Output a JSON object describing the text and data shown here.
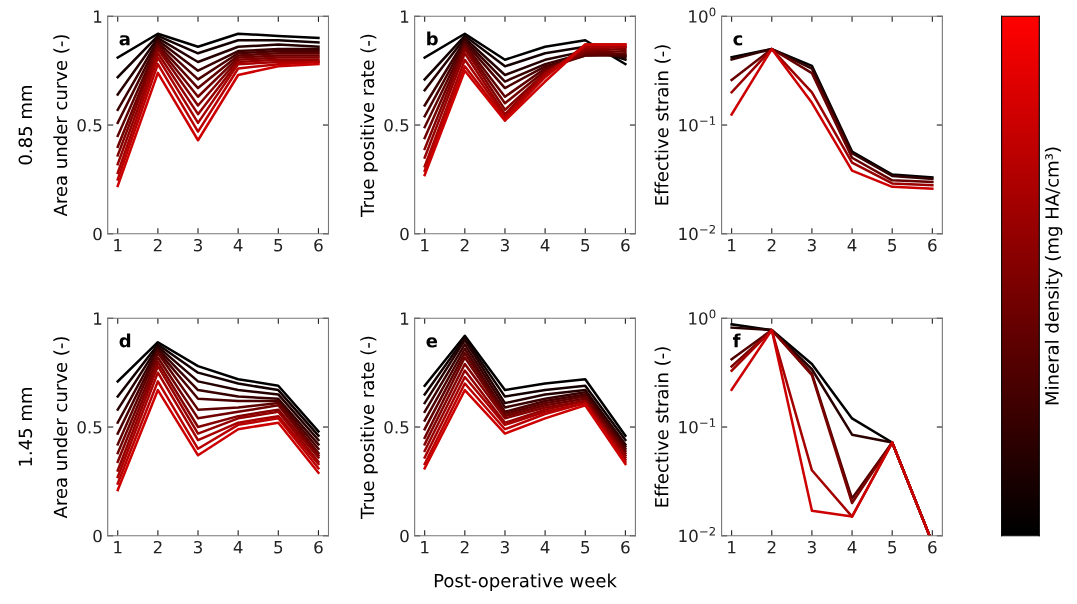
{
  "chart_data": [
    {
      "type": "line",
      "ylabel": "Area under curve (-)",
      "annotations": [
        "a",
        "0.85 mm"
      ],
      "x": [
        1,
        2,
        3,
        4,
        5,
        6
      ],
      "xlim": [
        0.75,
        6.25
      ],
      "xticks": [
        1,
        2,
        3,
        4,
        5,
        6
      ],
      "ylim": [
        0,
        1
      ],
      "yticks": [
        0,
        0.5,
        1
      ],
      "series": [
        {
          "color": "#000000",
          "values": [
            0.81,
            0.92,
            0.86,
            0.92,
            0.91,
            0.9
          ]
        },
        {
          "color": "#130000",
          "values": [
            0.72,
            0.91,
            0.83,
            0.89,
            0.89,
            0.88
          ]
        },
        {
          "color": "#250000",
          "values": [
            0.64,
            0.9,
            0.79,
            0.86,
            0.87,
            0.86
          ]
        },
        {
          "color": "#380000",
          "values": [
            0.57,
            0.89,
            0.75,
            0.84,
            0.85,
            0.85
          ]
        },
        {
          "color": "#4a0000",
          "values": [
            0.51,
            0.88,
            0.71,
            0.83,
            0.84,
            0.84
          ]
        },
        {
          "color": "#5d0000",
          "values": [
            0.45,
            0.87,
            0.67,
            0.82,
            0.83,
            0.83
          ]
        },
        {
          "color": "#6f0000",
          "values": [
            0.4,
            0.86,
            0.63,
            0.81,
            0.82,
            0.82
          ]
        },
        {
          "color": "#820000",
          "values": [
            0.36,
            0.85,
            0.59,
            0.8,
            0.81,
            0.81
          ]
        },
        {
          "color": "#940000",
          "values": [
            0.32,
            0.83,
            0.55,
            0.79,
            0.8,
            0.8
          ]
        },
        {
          "color": "#a70000",
          "values": [
            0.28,
            0.81,
            0.51,
            0.78,
            0.79,
            0.79
          ]
        },
        {
          "color": "#b90000",
          "values": [
            0.25,
            0.78,
            0.47,
            0.76,
            0.78,
            0.79
          ]
        },
        {
          "color": "#cc0000",
          "values": [
            0.22,
            0.74,
            0.43,
            0.73,
            0.77,
            0.78
          ]
        }
      ]
    },
    {
      "type": "line",
      "ylabel": "True positive rate (-)",
      "annotations": [
        "b"
      ],
      "x": [
        1,
        2,
        3,
        4,
        5,
        6
      ],
      "xlim": [
        0.75,
        6.25
      ],
      "xticks": [
        1,
        2,
        3,
        4,
        5,
        6
      ],
      "ylim": [
        0,
        1
      ],
      "yticks": [
        0,
        0.5,
        1
      ],
      "series": [
        {
          "color": "#000000",
          "values": [
            0.81,
            0.92,
            0.8,
            0.86,
            0.89,
            0.78
          ]
        },
        {
          "color": "#130000",
          "values": [
            0.71,
            0.91,
            0.77,
            0.83,
            0.86,
            0.8
          ]
        },
        {
          "color": "#250000",
          "values": [
            0.66,
            0.9,
            0.73,
            0.8,
            0.84,
            0.81
          ]
        },
        {
          "color": "#380000",
          "values": [
            0.59,
            0.89,
            0.7,
            0.78,
            0.83,
            0.82
          ]
        },
        {
          "color": "#4a0000",
          "values": [
            0.54,
            0.88,
            0.67,
            0.77,
            0.82,
            0.82
          ]
        },
        {
          "color": "#5d0000",
          "values": [
            0.49,
            0.87,
            0.63,
            0.76,
            0.82,
            0.83
          ]
        },
        {
          "color": "#6f0000",
          "values": [
            0.44,
            0.86,
            0.6,
            0.75,
            0.83,
            0.84
          ]
        },
        {
          "color": "#820000",
          "values": [
            0.39,
            0.85,
            0.57,
            0.74,
            0.84,
            0.85
          ]
        },
        {
          "color": "#940000",
          "values": [
            0.35,
            0.83,
            0.55,
            0.74,
            0.85,
            0.86
          ]
        },
        {
          "color": "#a70000",
          "values": [
            0.31,
            0.8,
            0.54,
            0.73,
            0.86,
            0.86
          ]
        },
        {
          "color": "#b90000",
          "values": [
            0.29,
            0.77,
            0.53,
            0.72,
            0.87,
            0.87
          ]
        },
        {
          "color": "#cc0000",
          "values": [
            0.27,
            0.75,
            0.52,
            0.7,
            0.87,
            0.87
          ]
        }
      ]
    },
    {
      "type": "line",
      "ylabel": "Effective strain (-)",
      "annotations": [
        "c"
      ],
      "log": "y",
      "x": [
        1,
        2,
        3,
        4,
        5,
        6
      ],
      "xlim": [
        0.75,
        6.25
      ],
      "xticks": [
        1,
        2,
        3,
        4,
        5,
        6
      ],
      "ylim": [
        0.01,
        1
      ],
      "yticks": [
        {
          "value": 0.01,
          "label": "10$^{−2}$"
        },
        {
          "value": 0.1,
          "label": "10$^{−1}$"
        },
        {
          "value": 1,
          "label": "10$^{0}$"
        }
      ],
      "series": [
        {
          "color": "#000000",
          "values": [
            0.42,
            0.5,
            0.35,
            0.057,
            0.035,
            0.033
          ]
        },
        {
          "color": "#330000",
          "values": [
            0.4,
            0.5,
            0.33,
            0.055,
            0.034,
            0.032
          ]
        },
        {
          "color": "#660000",
          "values": [
            0.26,
            0.5,
            0.3,
            0.05,
            0.031,
            0.03
          ]
        },
        {
          "color": "#990000",
          "values": [
            0.2,
            0.5,
            0.2,
            0.045,
            0.029,
            0.028
          ]
        },
        {
          "color": "#cc0000",
          "values": [
            0.125,
            0.5,
            0.16,
            0.038,
            0.027,
            0.026
          ]
        }
      ]
    },
    {
      "type": "line",
      "ylabel": "Area under curve (-)",
      "annotations": [
        "d",
        "1.45 mm"
      ],
      "x": [
        1,
        2,
        3,
        4,
        5,
        6
      ],
      "xlim": [
        0.75,
        6.25
      ],
      "xticks": [
        1,
        2,
        3,
        4,
        5,
        6
      ],
      "ylim": [
        0,
        1
      ],
      "yticks": [
        0,
        0.5,
        1
      ],
      "series": [
        {
          "color": "#000000",
          "values": [
            0.71,
            0.89,
            0.78,
            0.72,
            0.69,
            0.48
          ]
        },
        {
          "color": "#130000",
          "values": [
            0.64,
            0.88,
            0.75,
            0.7,
            0.67,
            0.46
          ]
        },
        {
          "color": "#250000",
          "values": [
            0.58,
            0.87,
            0.71,
            0.67,
            0.65,
            0.44
          ]
        },
        {
          "color": "#380000",
          "values": [
            0.52,
            0.86,
            0.67,
            0.64,
            0.63,
            0.42
          ]
        },
        {
          "color": "#4a0000",
          "values": [
            0.47,
            0.85,
            0.63,
            0.62,
            0.62,
            0.4
          ]
        },
        {
          "color": "#5d0000",
          "values": [
            0.42,
            0.84,
            0.58,
            0.59,
            0.61,
            0.38
          ]
        },
        {
          "color": "#6f0000",
          "values": [
            0.38,
            0.82,
            0.54,
            0.57,
            0.6,
            0.37
          ]
        },
        {
          "color": "#820000",
          "values": [
            0.34,
            0.8,
            0.5,
            0.55,
            0.58,
            0.36
          ]
        },
        {
          "color": "#940000",
          "values": [
            0.3,
            0.78,
            0.47,
            0.54,
            0.57,
            0.34
          ]
        },
        {
          "color": "#a70000",
          "values": [
            0.27,
            0.75,
            0.44,
            0.52,
            0.55,
            0.33
          ]
        },
        {
          "color": "#b90000",
          "values": [
            0.24,
            0.71,
            0.4,
            0.51,
            0.54,
            0.31
          ]
        },
        {
          "color": "#cc0000",
          "values": [
            0.21,
            0.67,
            0.37,
            0.49,
            0.52,
            0.29
          ]
        }
      ]
    },
    {
      "type": "line",
      "ylabel": "True positive rate (-)",
      "xlabel": "Post-operative week",
      "annotations": [
        "e"
      ],
      "x": [
        1,
        2,
        3,
        4,
        5,
        6
      ],
      "xlim": [
        0.75,
        6.25
      ],
      "xticks": [
        1,
        2,
        3,
        4,
        5,
        6
      ],
      "ylim": [
        0,
        1
      ],
      "yticks": [
        0,
        0.5,
        1
      ],
      "series": [
        {
          "color": "#000000",
          "values": [
            0.69,
            0.92,
            0.67,
            0.7,
            0.72,
            0.46
          ]
        },
        {
          "color": "#130000",
          "values": [
            0.65,
            0.91,
            0.64,
            0.67,
            0.69,
            0.44
          ]
        },
        {
          "color": "#250000",
          "values": [
            0.61,
            0.9,
            0.61,
            0.65,
            0.67,
            0.42
          ]
        },
        {
          "color": "#380000",
          "values": [
            0.57,
            0.88,
            0.59,
            0.63,
            0.66,
            0.41
          ]
        },
        {
          "color": "#4a0000",
          "values": [
            0.53,
            0.86,
            0.57,
            0.62,
            0.65,
            0.4
          ]
        },
        {
          "color": "#5d0000",
          "values": [
            0.49,
            0.84,
            0.56,
            0.61,
            0.64,
            0.39
          ]
        },
        {
          "color": "#6f0000",
          "values": [
            0.45,
            0.82,
            0.55,
            0.6,
            0.63,
            0.38
          ]
        },
        {
          "color": "#820000",
          "values": [
            0.42,
            0.79,
            0.54,
            0.59,
            0.62,
            0.37
          ]
        },
        {
          "color": "#940000",
          "values": [
            0.39,
            0.76,
            0.52,
            0.58,
            0.62,
            0.36
          ]
        },
        {
          "color": "#a70000",
          "values": [
            0.36,
            0.73,
            0.51,
            0.57,
            0.61,
            0.35
          ]
        },
        {
          "color": "#b90000",
          "values": [
            0.33,
            0.7,
            0.49,
            0.56,
            0.61,
            0.34
          ]
        },
        {
          "color": "#cc0000",
          "values": [
            0.31,
            0.67,
            0.47,
            0.54,
            0.6,
            0.33
          ]
        }
      ]
    },
    {
      "type": "line",
      "ylabel": "Effective strain (-)",
      "annotations": [
        "f"
      ],
      "log": "y",
      "x": [
        1,
        2,
        3,
        4,
        5,
        5.93
      ],
      "xlim": [
        0.75,
        6.25
      ],
      "xticks": [
        1,
        2,
        3,
        4,
        5,
        6
      ],
      "ylim": [
        0.01,
        1
      ],
      "yticks": [
        {
          "value": 0.01,
          "label": "10$^{−2}$"
        },
        {
          "value": 0.1,
          "label": "10$^{−1}$"
        },
        {
          "value": 1,
          "label": "10$^{0}$"
        }
      ],
      "series": [
        {
          "color": "#000000",
          "values": [
            0.88,
            0.78,
            0.38,
            0.12,
            0.072,
            0.01
          ]
        },
        {
          "color": "#290000",
          "values": [
            0.82,
            0.78,
            0.34,
            0.085,
            0.072,
            0.01
          ]
        },
        {
          "color": "#520000",
          "values": [
            0.42,
            0.78,
            0.31,
            0.022,
            0.072,
            0.01
          ]
        },
        {
          "color": "#7a0000",
          "values": [
            0.36,
            0.78,
            0.3,
            0.02,
            0.072,
            0.01
          ]
        },
        {
          "color": "#a30000",
          "values": [
            0.33,
            0.78,
            0.04,
            0.015,
            0.072,
            0.01
          ]
        },
        {
          "color": "#cc0000",
          "values": [
            0.22,
            0.78,
            0.017,
            0.015,
            0.072,
            0.01
          ]
        }
      ]
    },
    {
      "type": "other",
      "clabel": "Mineral density (mg HA/cm³)",
      "colors": [
        "#000000",
        "#ff0000"
      ]
    }
  ]
}
